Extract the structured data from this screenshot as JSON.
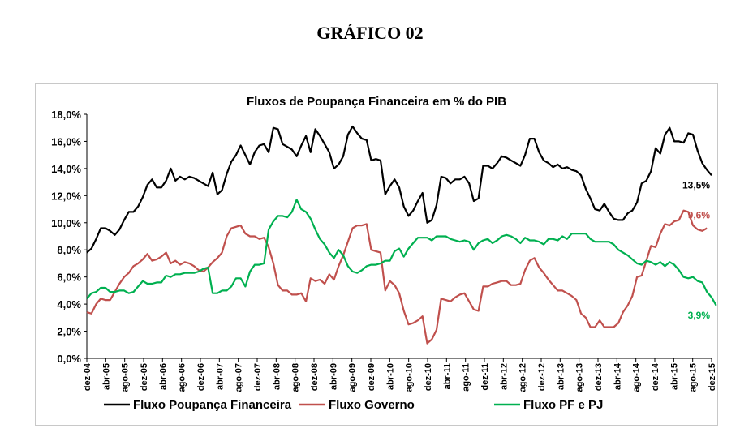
{
  "heading": "GRÁFICO 02",
  "chart_data": {
    "type": "line",
    "title": "Fluxos de Poupança Financeira em % do PIB",
    "xlabel": "",
    "ylabel": "",
    "ylim": [
      0,
      18
    ],
    "y_ticks": [
      "0,0%",
      "2,0%",
      "4,0%",
      "6,0%",
      "8,0%",
      "10,0%",
      "12,0%",
      "14,0%",
      "16,0%",
      "18,0%"
    ],
    "x_ticks": [
      "dez-04",
      "abr-05",
      "ago-05",
      "dez-05",
      "abr-06",
      "ago-06",
      "dez-06",
      "abr-07",
      "ago-07",
      "dez-07",
      "abr-08",
      "ago-08",
      "dez-08",
      "abr-09",
      "ago-09",
      "dez-09",
      "abr-10",
      "ago-10",
      "dez-10",
      "abr-11",
      "ago-11",
      "dez-11",
      "abr-12",
      "ago-12",
      "dez-12",
      "abr-13",
      "ago-13",
      "dez-13",
      "abr-14",
      "ago-14",
      "dez-14",
      "abr-15",
      "ago-15",
      "dez-15"
    ],
    "grid": false,
    "legend_position": "bottom",
    "series": [
      {
        "name": "Fluxo Poupança Financeira",
        "color": "#000000",
        "end_label": "13,5%",
        "values": [
          7.8,
          8.1,
          8.8,
          9.6,
          9.6,
          9.4,
          9.1,
          9.5,
          10.2,
          10.8,
          10.8,
          11.2,
          11.9,
          12.8,
          13.2,
          12.6,
          12.6,
          13.1,
          14.0,
          13.1,
          13.4,
          13.2,
          13.4,
          13.3,
          13.1,
          12.9,
          12.7,
          13.7,
          12.1,
          12.4,
          13.6,
          14.5,
          15.0,
          15.7,
          15.0,
          14.3,
          15.2,
          15.7,
          15.8,
          15.2,
          17.0,
          16.9,
          15.8,
          15.6,
          15.4,
          14.9,
          15.7,
          16.4,
          15.2,
          16.9,
          16.4,
          15.8,
          15.2,
          14.0,
          14.3,
          14.9,
          16.5,
          17.1,
          16.6,
          16.2,
          16.1,
          14.6,
          14.7,
          14.6,
          12.1,
          12.7,
          13.2,
          12.6,
          11.2,
          10.5,
          10.9,
          11.6,
          12.2,
          10.0,
          10.2,
          11.3,
          13.4,
          13.3,
          12.9,
          13.2,
          13.2,
          13.4,
          12.9,
          11.6,
          11.8,
          14.2,
          14.2,
          14.0,
          14.4,
          14.9,
          14.8,
          14.6,
          14.4,
          14.2,
          15.0,
          16.2,
          16.2,
          15.2,
          14.6,
          14.4,
          14.1,
          14.3,
          14.0,
          14.1,
          13.9,
          13.8,
          13.5,
          12.5,
          11.8,
          11.0,
          10.9,
          11.4,
          10.8,
          10.3,
          10.2,
          10.2,
          10.7,
          10.9,
          11.5,
          12.9,
          13.1,
          13.8,
          15.5,
          15.1,
          16.5,
          17.0,
          16.0,
          16.0,
          15.9,
          16.6,
          16.5,
          15.3,
          14.4,
          13.9,
          13.5
        ]
      },
      {
        "name": "Fluxo Governo",
        "color": "#c0504d",
        "end_label": "9,6%",
        "values": [
          3.4,
          3.3,
          4.0,
          4.4,
          4.3,
          4.3,
          4.9,
          5.5,
          6.0,
          6.3,
          6.8,
          7.0,
          7.3,
          7.7,
          7.2,
          7.3,
          7.5,
          7.8,
          7.0,
          7.2,
          6.9,
          7.1,
          7.0,
          6.8,
          6.5,
          6.4,
          6.7,
          7.1,
          7.4,
          7.8,
          9.0,
          9.6,
          9.7,
          9.8,
          9.2,
          9.0,
          9.0,
          8.8,
          8.9,
          8.2,
          7.0,
          5.4,
          5.0,
          5.0,
          4.7,
          4.7,
          4.8,
          4.2,
          5.9,
          5.7,
          5.8,
          5.5,
          6.2,
          5.8,
          6.8,
          7.6,
          8.6,
          9.6,
          9.8,
          9.8,
          9.9,
          8.0,
          7.9,
          7.8,
          5.0,
          5.7,
          5.4,
          4.8,
          3.5,
          2.5,
          2.6,
          2.8,
          3.1,
          1.1,
          1.4,
          2.1,
          4.4,
          4.3,
          4.2,
          4.5,
          4.7,
          4.8,
          4.2,
          3.6,
          3.5,
          5.3,
          5.3,
          5.5,
          5.6,
          5.7,
          5.7,
          5.4,
          5.4,
          5.5,
          6.5,
          7.2,
          7.4,
          6.7,
          6.3,
          5.8,
          5.4,
          5.0,
          5.0,
          4.8,
          4.6,
          4.3,
          3.3,
          3.0,
          2.3,
          2.3,
          2.8,
          2.3,
          2.3,
          2.3,
          2.6,
          3.4,
          3.9,
          4.6,
          6.0,
          6.1,
          7.2,
          8.3,
          8.2,
          9.2,
          9.9,
          9.8,
          10.1,
          10.2,
          10.9,
          10.8,
          9.8,
          9.5,
          9.4,
          9.6
        ]
      },
      {
        "name": "Fluxo PF e PJ",
        "color": "#00b050",
        "end_label": "3,9%",
        "values": [
          4.4,
          4.8,
          4.9,
          5.2,
          5.2,
          4.9,
          4.9,
          5.0,
          5.0,
          4.8,
          4.9,
          5.3,
          5.7,
          5.5,
          5.5,
          5.6,
          5.6,
          6.1,
          6.0,
          6.2,
          6.2,
          6.3,
          6.3,
          6.3,
          6.4,
          6.6,
          6.7,
          4.8,
          4.8,
          5.0,
          5.0,
          5.3,
          5.9,
          5.9,
          5.3,
          6.4,
          6.9,
          6.9,
          7.0,
          9.5,
          10.1,
          10.5,
          10.5,
          10.4,
          10.8,
          11.7,
          11.0,
          10.8,
          10.3,
          9.5,
          8.8,
          8.4,
          7.8,
          7.4,
          8.0,
          7.6,
          6.8,
          6.4,
          6.3,
          6.5,
          6.8,
          6.9,
          6.9,
          7.0,
          7.2,
          7.2,
          7.9,
          8.1,
          7.5,
          8.1,
          8.5,
          8.9,
          8.9,
          8.9,
          8.7,
          9.0,
          9.0,
          9.0,
          8.8,
          8.7,
          8.6,
          8.7,
          8.6,
          8.0,
          8.5,
          8.7,
          8.8,
          8.5,
          8.7,
          9.0,
          9.1,
          9.0,
          8.8,
          8.5,
          8.9,
          8.7,
          8.7,
          8.6,
          8.4,
          8.8,
          8.8,
          8.7,
          9.0,
          8.8,
          9.2,
          9.2,
          9.2,
          9.2,
          8.8,
          8.6,
          8.6,
          8.6,
          8.6,
          8.4,
          8.0,
          7.8,
          7.6,
          7.3,
          7.0,
          6.9,
          7.2,
          7.1,
          6.9,
          7.1,
          6.8,
          7.1,
          6.9,
          6.5,
          6.0,
          5.9,
          6.0,
          5.7,
          5.6,
          4.9,
          4.5,
          3.9
        ]
      }
    ]
  }
}
